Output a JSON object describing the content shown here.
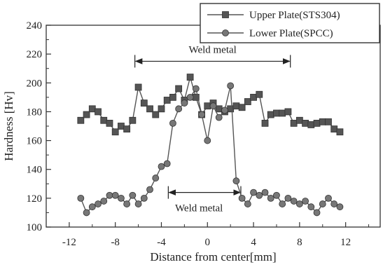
{
  "chart_data": {
    "type": "line",
    "title": "",
    "xlabel": "Distance from center[mm]",
    "ylabel": "Hardness [Hv]",
    "xlim": [
      -14,
      15
    ],
    "ylim": [
      100,
      240
    ],
    "xticks": [
      -12,
      -8,
      -4,
      0,
      4,
      8,
      12
    ],
    "yticks": [
      100,
      120,
      140,
      160,
      180,
      200,
      220,
      240
    ],
    "grid": false,
    "legend_position": "top-right",
    "series": [
      {
        "name": "Upper Plate(STS304)",
        "marker": "square",
        "color": "#555555",
        "x": [
          -11,
          -10.5,
          -10,
          -9.5,
          -9,
          -8.5,
          -8,
          -7.5,
          -7,
          -6.5,
          -6,
          -5.5,
          -5,
          -4.5,
          -4,
          -3.5,
          -3,
          -2.5,
          -2,
          -1.5,
          -1,
          -0.5,
          0,
          0.5,
          1,
          1.5,
          2,
          2.5,
          3,
          3.5,
          4,
          4.5,
          5,
          5.5,
          6,
          6.5,
          7,
          7.5,
          8,
          8.5,
          9,
          9.5,
          10,
          10.5,
          11,
          11.5
        ],
        "y": [
          174,
          178,
          182,
          180,
          174,
          172,
          166,
          170,
          168,
          174,
          197,
          186,
          182,
          178,
          182,
          188,
          190,
          196,
          188,
          204,
          190,
          178,
          184,
          186,
          182,
          180,
          182,
          184,
          183,
          187,
          190,
          192,
          172,
          178,
          179,
          179,
          180,
          172,
          174,
          172,
          171,
          172,
          173,
          173,
          168,
          166
        ]
      },
      {
        "name": "Lower Plate(SPCC)",
        "marker": "circle",
        "color": "#777777",
        "x": [
          -11,
          -10.5,
          -10,
          -9.5,
          -9,
          -8.5,
          -8,
          -7.5,
          -7,
          -6.5,
          -6,
          -5.5,
          -5,
          -4.5,
          -4,
          -3.5,
          -3,
          -2.5,
          -2,
          -1.5,
          -1,
          -0.5,
          0,
          0.5,
          1,
          1.5,
          2,
          2.5,
          3,
          3.5,
          4,
          4.5,
          5,
          5.5,
          6,
          6.5,
          7,
          7.5,
          8,
          8.5,
          9,
          9.5,
          10,
          10.5,
          11,
          11.5
        ],
        "y": [
          120,
          110,
          114,
          116,
          118,
          122,
          122,
          120,
          116,
          122,
          116,
          120,
          126,
          134,
          142,
          144,
          172,
          182,
          186,
          190,
          196,
          178,
          160,
          184,
          176,
          181,
          198,
          132,
          120,
          116,
          124,
          122,
          124,
          120,
          122,
          116,
          120,
          118,
          116,
          118,
          114,
          110,
          116,
          120,
          116,
          114
        ]
      }
    ],
    "annotations": [
      {
        "text": "Weld metal",
        "x_range": [
          -6.3,
          7.2
        ],
        "y": 215
      },
      {
        "text": "Weld metal",
        "x_range": [
          -3.4,
          2.9
        ],
        "y": 124
      }
    ]
  }
}
